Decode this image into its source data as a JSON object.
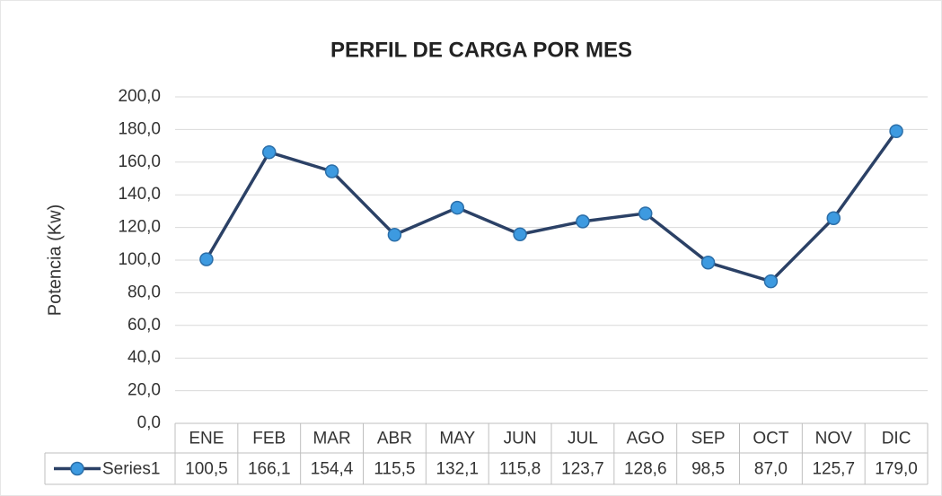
{
  "chart_data": {
    "type": "line",
    "title": "PERFIL DE CARGA POR MES",
    "y_label": "Potencia (Kw)",
    "categories": [
      "ENE",
      "FEB",
      "MAR",
      "ABR",
      "MAY",
      "JUN",
      "JUL",
      "AGO",
      "SEP",
      "OCT",
      "NOV",
      "DIC"
    ],
    "series": [
      {
        "name": "Series1",
        "color": "#2b4166",
        "marker_color": "#3d9ae0",
        "values": [
          100.5,
          166.1,
          154.4,
          115.5,
          132.1,
          115.8,
          123.7,
          128.6,
          98.5,
          87.0,
          125.7,
          179.0
        ],
        "value_labels": [
          "100,5",
          "166,1",
          "154,4",
          "115,5",
          "132,1",
          "115,8",
          "123,7",
          "128,6",
          "98,5",
          "87,0",
          "125,7",
          "179,0"
        ]
      }
    ],
    "ylim": [
      0,
      200
    ],
    "yticks": [
      {
        "value": 0,
        "label": "0,0"
      },
      {
        "value": 20,
        "label": "20,0"
      },
      {
        "value": 40,
        "label": "40,0"
      },
      {
        "value": 60,
        "label": "60,0"
      },
      {
        "value": 80,
        "label": "80,0"
      },
      {
        "value": 100,
        "label": "100,0"
      },
      {
        "value": 120,
        "label": "120,0"
      },
      {
        "value": 140,
        "label": "140,0"
      },
      {
        "value": 160,
        "label": "160,0"
      },
      {
        "value": 180,
        "label": "180,0"
      },
      {
        "value": 200,
        "label": "200,0"
      }
    ],
    "grid": true,
    "data_table": true
  }
}
